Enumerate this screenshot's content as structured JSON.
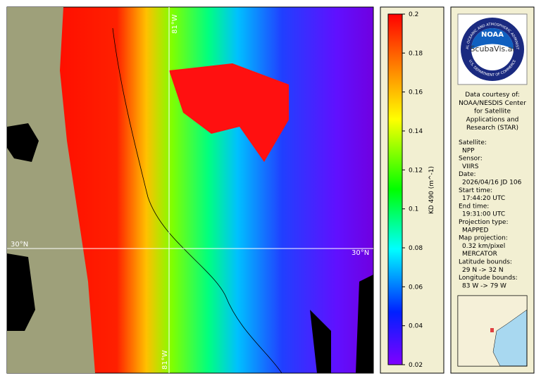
{
  "map": {
    "grid_labels": {
      "lon_top": "81°W",
      "lon_bottom": "81°W",
      "lat_left": "30°N",
      "lat_right": "30°N"
    }
  },
  "colorbar": {
    "label": "KD 490 (m^-1)",
    "ticks": [
      0.2,
      0.18,
      0.16,
      0.14,
      0.12,
      0.1,
      0.08,
      0.06,
      0.04,
      0.02
    ]
  },
  "info": {
    "logo": {
      "name": "NOAA",
      "ring_top": "NATIONAL OCEANIC AND ATMOSPHERIC ADMINISTRATION",
      "ring_bottom": "U.S. DEPARTMENT OF COMMERCE",
      "watermark": "ScubaVis.ai"
    },
    "credit": [
      "Data courtesy of:",
      "NOAA/NESDIS Center",
      "for Satellite",
      "Applications and",
      "Research (STAR)"
    ],
    "fields": [
      {
        "label": "Satellite:",
        "values": [
          "NPP"
        ]
      },
      {
        "label": "Sensor:",
        "values": [
          "VIIRS"
        ]
      },
      {
        "label": "Date:",
        "values": [
          "2026/04/16 JD 106"
        ]
      },
      {
        "label": "Start time:",
        "values": [
          "17:44:20 UTC"
        ]
      },
      {
        "label": "End time:",
        "values": [
          "19:31:00 UTC"
        ]
      },
      {
        "label": "Projection type:",
        "values": [
          "MAPPED"
        ]
      },
      {
        "label": "Map projection:",
        "values": [
          "0.32 km/pixel",
          "MERCATOR"
        ]
      },
      {
        "label": "Latitude bounds:",
        "values": [
          "29 N -> 32 N"
        ]
      },
      {
        "label": "Longitude bounds:",
        "values": [
          "83 W -> 79 W"
        ]
      }
    ]
  }
}
